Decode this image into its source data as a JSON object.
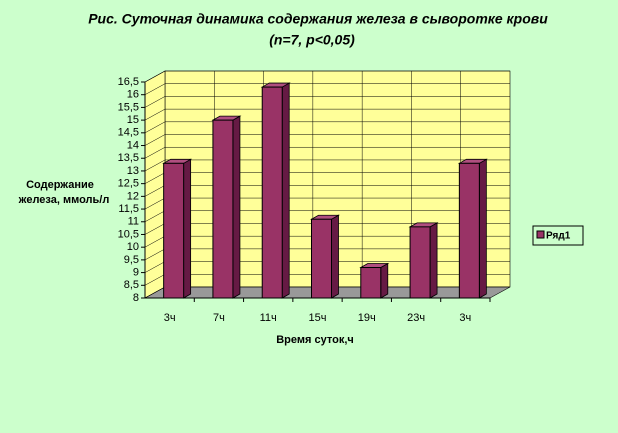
{
  "chart_data": {
    "type": "bar3d",
    "title": "Рис. Суточная динамика содержания железа в сыворотке крови",
    "subtitle": "(n=7, p<0,05)",
    "y_label": [
      "Содержание",
      "железа, ммоль/л"
    ],
    "x_label": "Время суток,ч",
    "categories": [
      "3ч",
      "7ч",
      "11ч",
      "15ч",
      "19ч",
      "23ч",
      "3ч"
    ],
    "series": [
      {
        "name": "Ряд1",
        "color": "#993366",
        "values": [
          13.3,
          15.0,
          16.3,
          11.1,
          9.2,
          10.8,
          13.3
        ]
      }
    ],
    "ylim": [
      8,
      16.5
    ],
    "yticks": [
      8,
      {
        "value": 8.5,
        "label": "8,5"
      },
      9,
      {
        "value": 9.5,
        "label": "9,5"
      },
      10,
      {
        "value": 10.5,
        "label": "10,5"
      },
      11,
      {
        "value": 11.5,
        "label": "11,5"
      },
      12,
      {
        "value": 12.5,
        "label": "12,5"
      },
      13,
      {
        "value": 13.5,
        "label": "13,5"
      },
      14,
      {
        "value": 14.5,
        "label": "14,5"
      },
      15,
      {
        "value": 15.5,
        "label": "15,5"
      },
      16,
      {
        "value": 16.5,
        "label": "16,5"
      }
    ],
    "grid": true,
    "legend": "right"
  }
}
